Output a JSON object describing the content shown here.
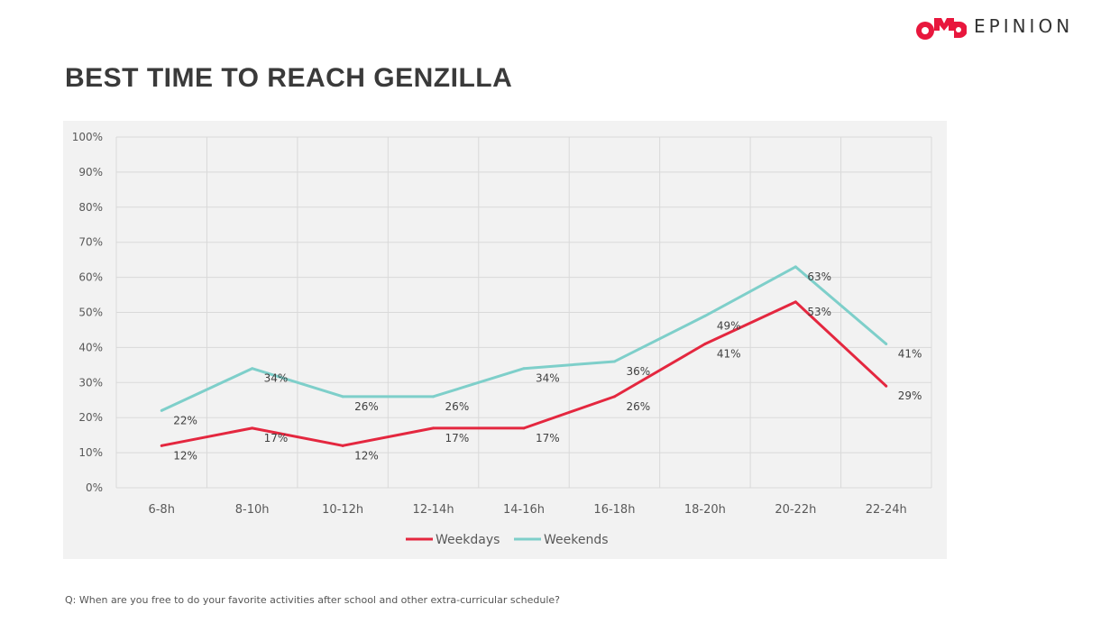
{
  "title": "BEST TIME TO REACH GENZILLA",
  "logo": {
    "mark": "OMD",
    "word": "EPINION",
    "color": "#e8173d"
  },
  "footnote": "Q: When are you free to do your favorite activities after school and other extra-curricular schedule?",
  "chart_data": {
    "type": "line",
    "title": "",
    "categories": [
      "6-8h",
      "8-10h",
      "10-12h",
      "12-14h",
      "14-16h",
      "16-18h",
      "18-20h",
      "20-22h",
      "22-24h"
    ],
    "series": [
      {
        "name": "Weekdays",
        "color": "#e4273f",
        "values": [
          12,
          17,
          12,
          17,
          17,
          26,
          41,
          53,
          29
        ]
      },
      {
        "name": "Weekends",
        "color": "#7ecfca",
        "values": [
          22,
          34,
          26,
          26,
          34,
          36,
          49,
          63,
          41
        ]
      }
    ],
    "ylim": [
      0,
      100
    ],
    "yticks": [
      0,
      10,
      20,
      30,
      40,
      50,
      60,
      70,
      80,
      90,
      100
    ],
    "ytick_suffix": "%",
    "grid": true,
    "legend": "bottom"
  }
}
